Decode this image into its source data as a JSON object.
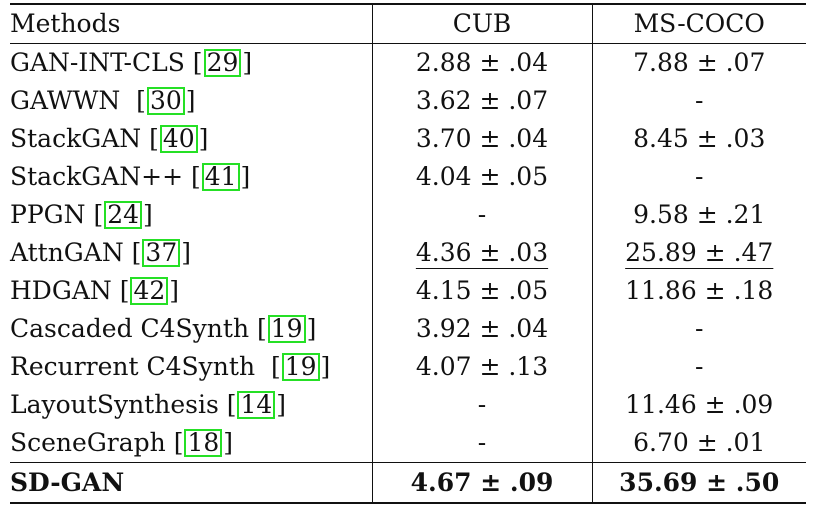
{
  "table": {
    "headers": [
      "Methods",
      "CUB",
      "MS-COCO"
    ],
    "rows": [
      {
        "method": "GAN-INT-CLS",
        "ref": "29",
        "cub": "2.88 ± .04",
        "coco": "7.88 ± .07"
      },
      {
        "method": "GAWWN",
        "ref": "30",
        "cub": "3.62 ± .07",
        "coco": "-"
      },
      {
        "method": "StackGAN",
        "ref": "40",
        "cub": "3.70 ± .04",
        "coco": "8.45 ± .03"
      },
      {
        "method": "StackGAN++",
        "ref": "41",
        "cub": "4.04 ± .05",
        "coco": "-"
      },
      {
        "method": "PPGN",
        "ref": "24",
        "cub": "-",
        "coco": "9.58 ± .21"
      },
      {
        "method": "AttnGAN",
        "ref": "37",
        "cub": "4.36 ± .03",
        "coco": "25.89 ± .47"
      },
      {
        "method": "HDGAN",
        "ref": "42",
        "cub": "4.15 ± .05",
        "coco": "11.86 ± .18"
      },
      {
        "method": "Cascaded C4Synth",
        "ref": "19",
        "cub": "3.92 ± .04",
        "coco": "-"
      },
      {
        "method": "Recurrent C4Synth",
        "ref": "19",
        "cub": "4.07 ± .13",
        "coco": "-"
      },
      {
        "method": "LayoutSynthesis",
        "ref": "14",
        "cub": "-",
        "coco": "11.46 ± .09"
      },
      {
        "method": "SceneGraph",
        "ref": "18",
        "cub": "-",
        "coco": "6.70 ± .01"
      }
    ],
    "final": {
      "method": "SD-GAN",
      "cub": "4.67 ± .09",
      "coco": "35.69 ± .50"
    }
  },
  "colors": {
    "ref_border": "#25e025",
    "rule": "#111111"
  }
}
